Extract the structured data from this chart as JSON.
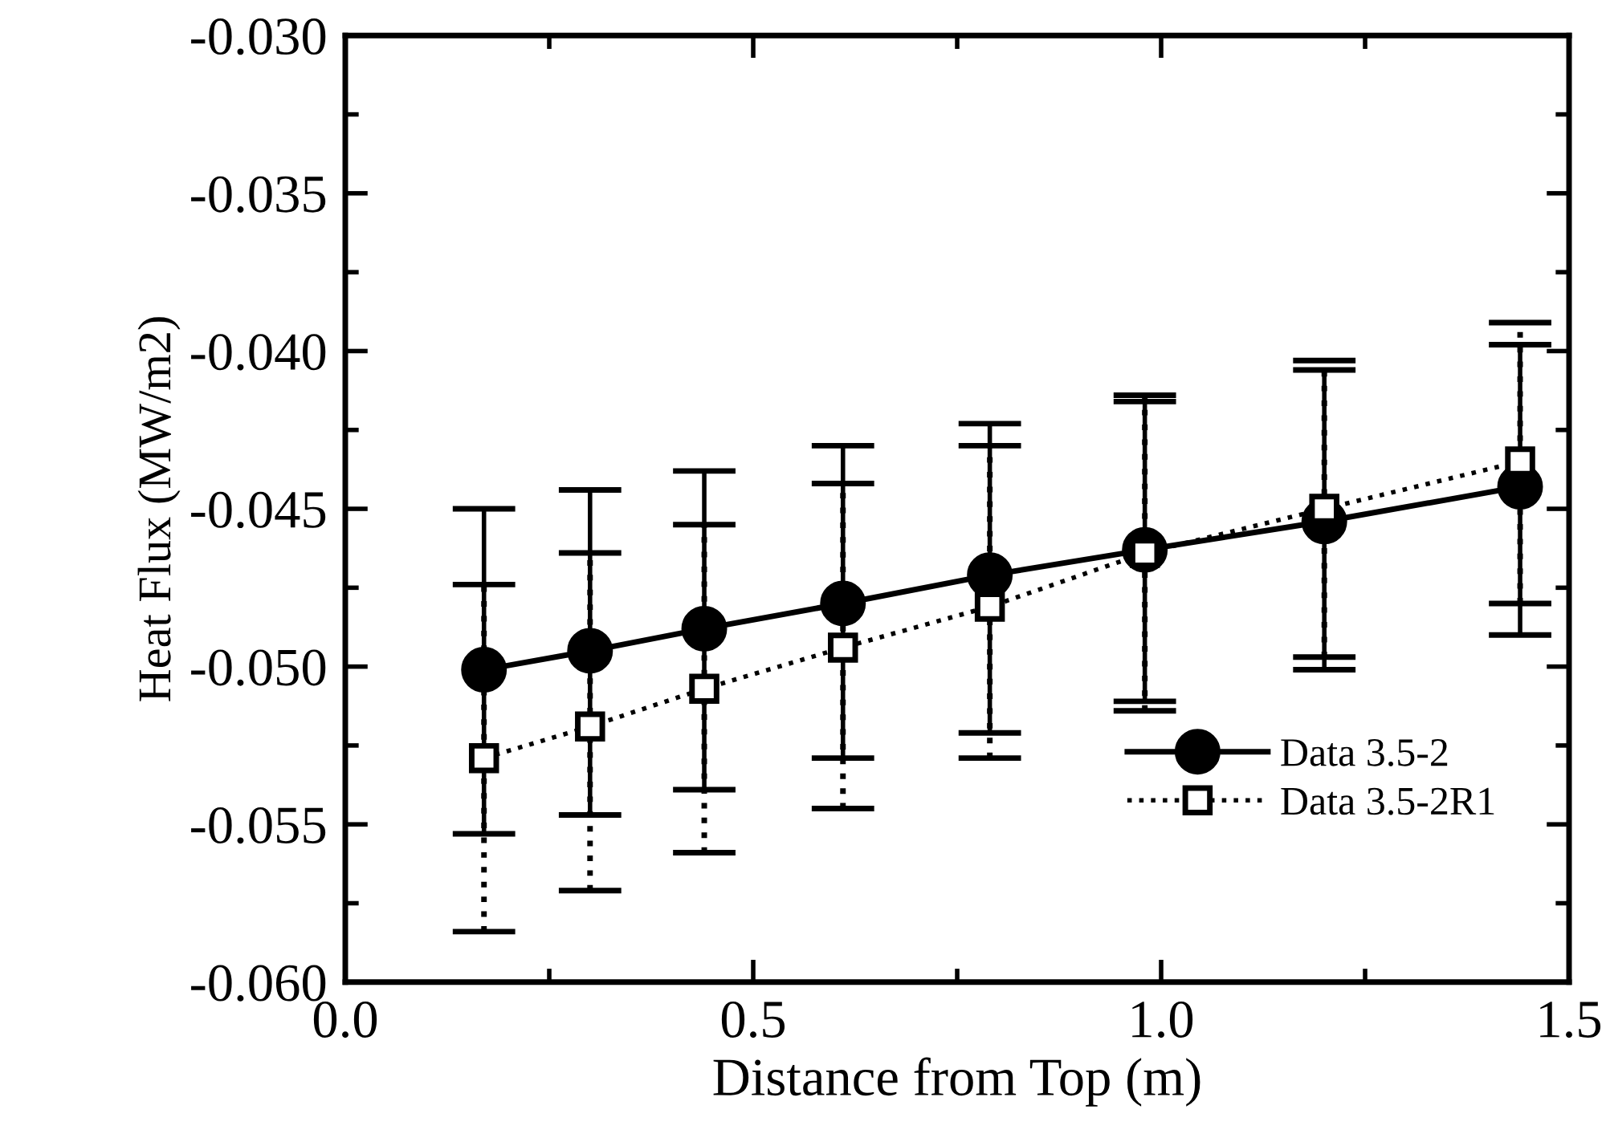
{
  "chart_data": {
    "type": "line",
    "xlabel": "Distance from Top (m)",
    "ylabel": "Heat Flux (MW/m2)",
    "x": [
      0.17,
      0.3,
      0.44,
      0.61,
      0.79,
      0.98,
      1.2,
      1.44
    ],
    "series": [
      {
        "name": "Data 3.5-2",
        "color": "#000000",
        "marker": "circle",
        "line_style": "solid",
        "values": [
          -0.0501,
          -0.0495,
          -0.0488,
          -0.048,
          -0.0471,
          -0.0463,
          -0.0454,
          -0.0443
        ],
        "errors": [
          [
            -0.0553,
            -0.045
          ],
          [
            -0.0547,
            -0.0444
          ],
          [
            -0.0539,
            -0.0438
          ],
          [
            -0.0529,
            -0.043
          ],
          [
            -0.0521,
            -0.0423
          ],
          [
            -0.0511,
            -0.0416
          ],
          [
            -0.0501,
            -0.0406
          ],
          [
            -0.049,
            -0.0398
          ]
        ]
      },
      {
        "name": "Data 3.5-2R1",
        "color": "#000000",
        "marker": "square",
        "line_style": "dotted",
        "values": [
          -0.0529,
          -0.0519,
          -0.0507,
          -0.0494,
          -0.0481,
          -0.0464,
          -0.045,
          -0.0435
        ],
        "errors": [
          [
            -0.0584,
            -0.0474
          ],
          [
            -0.0571,
            -0.0464
          ],
          [
            -0.0559,
            -0.0455
          ],
          [
            -0.0545,
            -0.0442
          ],
          [
            -0.0529,
            -0.043
          ],
          [
            -0.0514,
            -0.0414
          ],
          [
            -0.0497,
            -0.0403
          ],
          [
            -0.048,
            -0.0391
          ]
        ]
      }
    ],
    "xlim": [
      0.0,
      1.5
    ],
    "xticks": [
      {
        "value": 0.0,
        "label": "0.0"
      },
      {
        "value": 0.5,
        "label": "0.5"
      },
      {
        "value": 1.0,
        "label": "1.0"
      },
      {
        "value": 1.5,
        "label": "1.5"
      }
    ],
    "ylim": [
      -0.06,
      -0.03
    ],
    "yticks": [
      {
        "value": -0.06,
        "label": "-0.060"
      },
      {
        "value": -0.055,
        "label": "-0.055"
      },
      {
        "value": -0.05,
        "label": "-0.050"
      },
      {
        "value": -0.045,
        "label": "-0.045"
      },
      {
        "value": -0.04,
        "label": "-0.040"
      },
      {
        "value": -0.035,
        "label": "-0.035"
      },
      {
        "value": -0.03,
        "label": "-0.030"
      }
    ],
    "grid": false,
    "legend": "bottom right"
  }
}
